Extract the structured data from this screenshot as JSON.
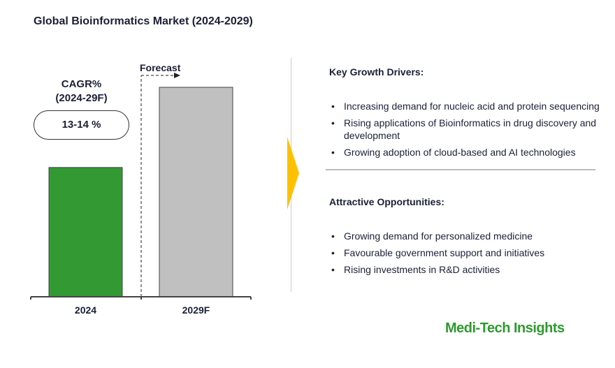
{
  "title": "Global Bioinformatics Market (2024-2029)",
  "cagr": {
    "label": "CAGR%",
    "period": "(2024-29F)",
    "value": "13-14 %"
  },
  "forecast_label": "Forecast",
  "chart_data": {
    "type": "bar",
    "title": "Global Bioinformatics Market (2024-2029)",
    "categories": [
      "2024",
      "2029F"
    ],
    "values": [
      100,
      162
    ],
    "value_units": "relative bar height (no values printed)",
    "colors": [
      "#339933",
      "#c0c0c0"
    ],
    "grid": false
  },
  "drivers": {
    "title": "Key Growth Drivers:",
    "items": [
      "Increasing demand for nucleic acid and protein sequencing",
      "Rising applications of Bioinformatics in drug discovery and development",
      "Growing adoption of cloud-based and AI technologies"
    ]
  },
  "opportunities": {
    "title": "Attractive Opportunities:",
    "items": [
      "Growing demand for personalized medicine",
      "Favourable government support and initiatives",
      "Rising investments in R&D activities"
    ]
  },
  "brand": "Medi-Tech Insights",
  "colors": {
    "accent_arrow": "#ffc000",
    "brand": "#2e9a2e"
  }
}
